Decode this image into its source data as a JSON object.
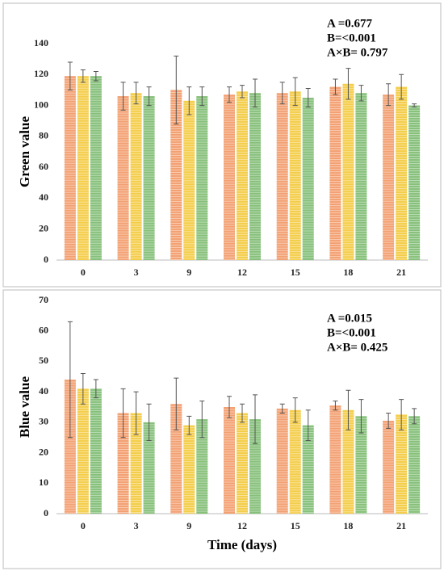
{
  "chart_data": [
    {
      "type": "bar",
      "y_label": "Green value",
      "categories": [
        "0",
        "3",
        "9",
        "12",
        "15",
        "18",
        "21"
      ],
      "series": [
        {
          "color": "#f3a072",
          "values": [
            119,
            106,
            110,
            107,
            108,
            112,
            107
          ],
          "errors": [
            9,
            9,
            22,
            5,
            7,
            5,
            7
          ]
        },
        {
          "color": "#f4cd4a",
          "values": [
            119,
            108,
            103,
            109,
            109,
            114,
            112
          ],
          "errors": [
            4,
            7,
            9,
            4,
            9,
            10,
            8
          ]
        },
        {
          "color": "#86c07a",
          "values": [
            119,
            106,
            106,
            108,
            105,
            108,
            100
          ],
          "errors": [
            3,
            6,
            6,
            9,
            6,
            5,
            1
          ]
        }
      ],
      "ylim": [
        0,
        140
      ],
      "yticks": [
        0,
        20,
        40,
        60,
        80,
        100,
        120,
        140
      ],
      "annotations": [
        "A =0.677",
        "B=<0.001",
        "A×B= 0.797"
      ]
    },
    {
      "type": "bar",
      "y_label": "Blue value",
      "x_label": "Time (days)",
      "categories": [
        "0",
        "3",
        "9",
        "12",
        "15",
        "18",
        "21"
      ],
      "series": [
        {
          "color": "#f3a072",
          "values": [
            44,
            33,
            36,
            35,
            34.5,
            35.5,
            30.5
          ],
          "errors": [
            19,
            8,
            8.5,
            3.5,
            1.5,
            1.5,
            2.5
          ]
        },
        {
          "color": "#f4cd4a",
          "values": [
            41,
            33,
            29,
            33,
            34,
            34,
            32.5
          ],
          "errors": [
            5,
            7,
            3,
            3,
            4,
            6.5,
            5
          ]
        },
        {
          "color": "#86c07a",
          "values": [
            41,
            30,
            31,
            31,
            29,
            32,
            32
          ],
          "errors": [
            3,
            6,
            6,
            8,
            5,
            5.5,
            2.5
          ]
        }
      ],
      "ylim": [
        0,
        70
      ],
      "yticks": [
        0,
        10,
        20,
        30,
        40,
        50,
        60,
        70
      ],
      "annotations": [
        "A =0.015",
        "B=<0.001",
        "A×B= 0.425"
      ]
    }
  ]
}
